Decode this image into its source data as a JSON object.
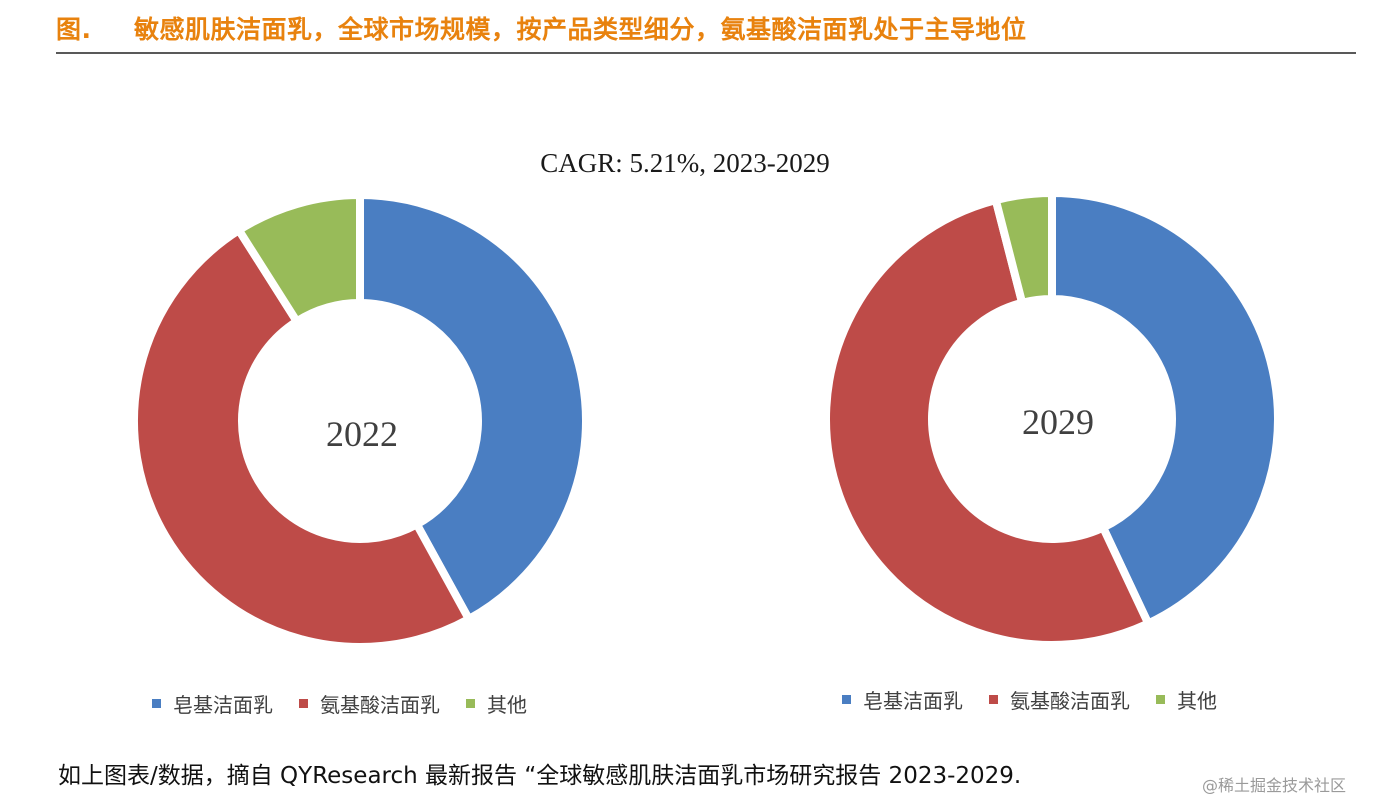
{
  "figure": {
    "label": "图.",
    "title": "敏感肌肤洁面乳，全球市场规模，按产品类型细分，氨基酸洁面乳处于主导地位",
    "subtitle": "CAGR: 5.21%, 2023-2029"
  },
  "colors": {
    "title": "#E8820E",
    "soap": "#4A7EC2",
    "amino": "#BE4B48",
    "other": "#98BB59"
  },
  "chart_data": [
    {
      "type": "pie",
      "subtype": "donut",
      "title": "2022",
      "categories": [
        "皂基洁面乳",
        "氨基酸洁面乳",
        "其他"
      ],
      "values": [
        42,
        49,
        9
      ],
      "unit": "%"
    },
    {
      "type": "pie",
      "subtype": "donut",
      "title": "2029",
      "categories": [
        "皂基洁面乳",
        "氨基酸洁面乳",
        "其他"
      ],
      "values": [
        43,
        53,
        4
      ],
      "unit": "%"
    }
  ],
  "legend": {
    "items": [
      "皂基洁面乳",
      "氨基酸洁面乳",
      "其他"
    ]
  },
  "source_note": "如上图表/数据，摘自 QYResearch 最新报告 “全球敏感肌肤洁面乳市场研究报告 2023-2029.",
  "watermark": "@稀土掘金技术社区"
}
